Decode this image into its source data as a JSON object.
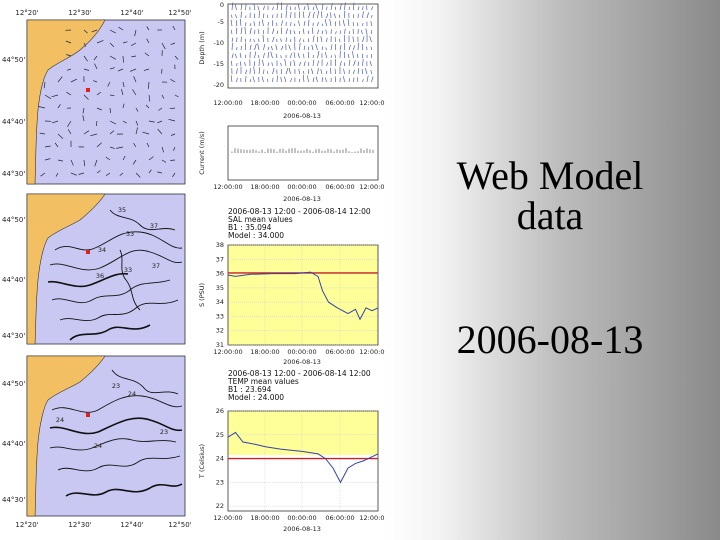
{
  "slide": {
    "title_line1": "Web Model",
    "title_line2": "data",
    "date": "2006-08-13"
  },
  "maps": {
    "lon_labels": [
      "12°20'",
      "12°30'",
      "12°40'",
      "12°50'"
    ],
    "lat_labels_top": [
      "44°50'",
      "44°40'",
      "44°30'"
    ],
    "lat_labels_mid": [
      "44°50'",
      "44°40'",
      "44°30'"
    ],
    "lat_labels_bot": [
      "44°50'",
      "44°40'",
      "44°30'"
    ],
    "sal_contour_labels": [
      "35",
      "37",
      "33",
      "34",
      "33",
      "37",
      "36"
    ],
    "temp_contour_labels": [
      "23",
      "24",
      "24",
      "24",
      "23"
    ]
  },
  "depth_plot": {
    "ylabel": "Depth (m)",
    "yticks": [
      "0",
      "-5",
      "-10",
      "-15",
      "-20"
    ],
    "xticks": [
      "12:00:00",
      "18:00:00",
      "00:00:00",
      "06:00:00",
      "12:00:00"
    ],
    "date": "2006-08-13"
  },
  "current_plot": {
    "ylabel": "Current (m/s)",
    "xticks": [
      "12:00:00",
      "18:00:00",
      "00:00:00",
      "06:00:00",
      "12:00:00"
    ],
    "date": "2006-08-13"
  },
  "sal_plot": {
    "header_line1": "2006-08-13 12:00 - 2006-08-14 12:00",
    "header_line2": "SAL mean values",
    "header_line3": "B1     : 35.094",
    "header_line4": "Model : 34.000",
    "ylabel": "S (PSU)",
    "yticks": [
      "38",
      "37",
      "36",
      "35",
      "34",
      "33",
      "32",
      "31"
    ],
    "xticks": [
      "12:00:00",
      "18:00:00",
      "00:00:00",
      "06:00:00",
      "12:00:00"
    ],
    "date": "2006-08-13",
    "colors": {
      "background": "#ffff99",
      "observed": "#3344aa",
      "model": "#cc2222"
    }
  },
  "temp_plot": {
    "header_line1": "2006-08-13 12:00 - 2006-08-14 12:00",
    "header_line2": "TEMP mean values",
    "header_line3": "B1     : 23.694",
    "header_line4": "Model : 24.000",
    "ylabel": "T (Celsius)",
    "yticks": [
      "26",
      "25",
      "24",
      "23",
      "22"
    ],
    "xticks": [
      "12:00:00",
      "18:00:00",
      "00:00:00",
      "06:00:00",
      "12:00:00"
    ],
    "date": "2006-08-13",
    "colors": {
      "background": "#ffff99",
      "observed": "#3344aa",
      "model": "#cc2222"
    }
  },
  "colors": {
    "land": "#f2c062",
    "sea": "#c8c8f2",
    "station": "#e02020",
    "slide_text": "#000000"
  }
}
